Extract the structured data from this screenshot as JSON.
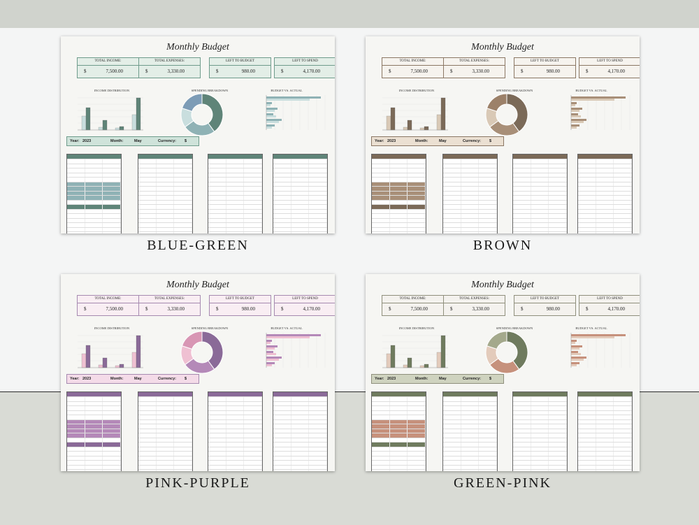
{
  "templates": [
    {
      "id": "blue-green",
      "banner": "BLUE-GREEN",
      "colors": {
        "kpi_bg": "#e3eee7",
        "kpi_border": "#6f9c8c",
        "dark": "#5f8478",
        "mid": "#8fb2b5",
        "light": "#c9dede",
        "accent": "#7d9cb6",
        "year_bg": "#cfe3da"
      },
      "kpis": [
        {
          "label": "TOTAL INCOME:",
          "value": "7,500.00"
        },
        {
          "label": "TOTAL EXPENSES:",
          "value": "3,330.00"
        },
        {
          "label": "LEFT TO BUDGET",
          "value": "980.00"
        },
        {
          "label": "LEFT TO SPEND",
          "value": "4,170.00"
        }
      ]
    },
    {
      "id": "brown",
      "banner": "BROWN",
      "colors": {
        "kpi_bg": "#f6f3ee",
        "kpi_border": "#8b7764",
        "dark": "#7b6a58",
        "mid": "#a88f78",
        "light": "#d9c9b6",
        "accent": "#9c8169",
        "year_bg": "#ebe0d2"
      },
      "kpis": [
        {
          "label": "TOTAL INCOME:",
          "value": "7,500.00"
        },
        {
          "label": "TOTAL EXPENSES:",
          "value": "3,330.00"
        },
        {
          "label": "LEFT TO BUDGET",
          "value": "980.00"
        },
        {
          "label": "LEFT TO SPEND",
          "value": "4,170.00"
        }
      ]
    },
    {
      "id": "pink-purple",
      "banner": "PINK-PURPLE",
      "colors": {
        "kpi_bg": "#f9eef3",
        "kpi_border": "#a68ab0",
        "dark": "#8a6a98",
        "mid": "#b489b8",
        "light": "#efc0d2",
        "accent": "#d896b4",
        "year_bg": "#f4dbe8"
      },
      "kpis": [
        {
          "label": "TOTAL INCOME:",
          "value": "7,500.00"
        },
        {
          "label": "TOTAL EXPENSES:",
          "value": "3,330.00"
        },
        {
          "label": "LEFT TO BUDGET",
          "value": "980.00"
        },
        {
          "label": "LEFT TO SPEND",
          "value": "4,170.00"
        }
      ]
    },
    {
      "id": "green-pink",
      "banner": "GREEN-PINK",
      "colors": {
        "kpi_bg": "#f4f2ee",
        "kpi_border": "#8f8f7c",
        "dark": "#6f7b5e",
        "mid": "#c6917c",
        "light": "#e3cbbb",
        "accent": "#a4a98c",
        "year_bg": "#cfd3bf"
      },
      "kpis": [
        {
          "label": "TOTAL INCOME:",
          "value": "7,500.00"
        },
        {
          "label": "TOTAL EXPENSES:",
          "value": "3,330.00"
        },
        {
          "label": "LEFT TO BUDGET",
          "value": "980.00"
        },
        {
          "label": "LEFT TO SPEND",
          "value": "4,170.00"
        }
      ]
    }
  ],
  "common": {
    "title": "Monthly Budget",
    "currency_symbol": "$",
    "sections": {
      "income": "INCOME DISTRIBUTION",
      "spending": "SPENDING BREAKDOWN",
      "budget_actual": "BUDGET VS. ACTUAL"
    },
    "year_label": "Year:",
    "year": "2023",
    "month_label": "Month:",
    "month": "May",
    "currency_label": "Currency:",
    "currency": "$"
  }
}
